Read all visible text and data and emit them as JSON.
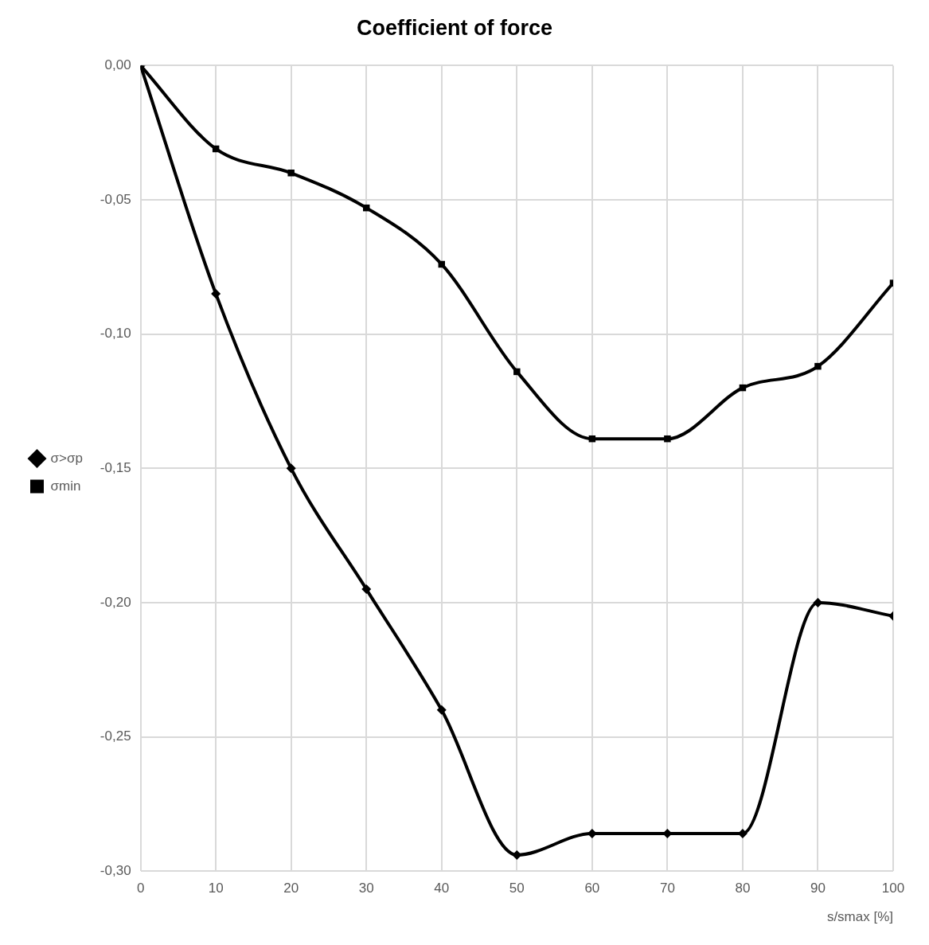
{
  "chart_data": {
    "type": "line",
    "title": "Coefficient of force",
    "xlabel": "s/smax [%]",
    "x": [
      0,
      10,
      20,
      30,
      40,
      50,
      60,
      70,
      80,
      90,
      100
    ],
    "series": [
      {
        "name": "σ>σp",
        "color": "#000000",
        "marker": "diamond",
        "values": [
          0,
          -0.085,
          -0.15,
          -0.195,
          -0.24,
          -0.294,
          -0.286,
          -0.286,
          -0.286,
          -0.2,
          -0.205
        ]
      },
      {
        "name": "σmin",
        "color": "#000000",
        "marker": "square",
        "values": [
          0,
          -0.031,
          -0.04,
          -0.053,
          -0.074,
          -0.114,
          -0.139,
          -0.139,
          -0.12,
          -0.112,
          -0.081
        ]
      }
    ],
    "xlim": [
      0,
      100
    ],
    "xticks": [
      0,
      10,
      20,
      30,
      40,
      50,
      60,
      70,
      80,
      90,
      100
    ],
    "ylim": [
      -0.3,
      0
    ],
    "yticks": [
      {
        "value": 0,
        "label": "0,00"
      },
      {
        "value": -0.05,
        "label": "-0,05"
      },
      {
        "value": -0.1,
        "label": "-0,10"
      },
      {
        "value": -0.15,
        "label": "-0,15"
      },
      {
        "value": -0.2,
        "label": "-0,20"
      },
      {
        "value": -0.25,
        "label": "-0,25"
      },
      {
        "value": -0.3,
        "label": "-0,30"
      }
    ],
    "grid": true,
    "legend": "left"
  }
}
